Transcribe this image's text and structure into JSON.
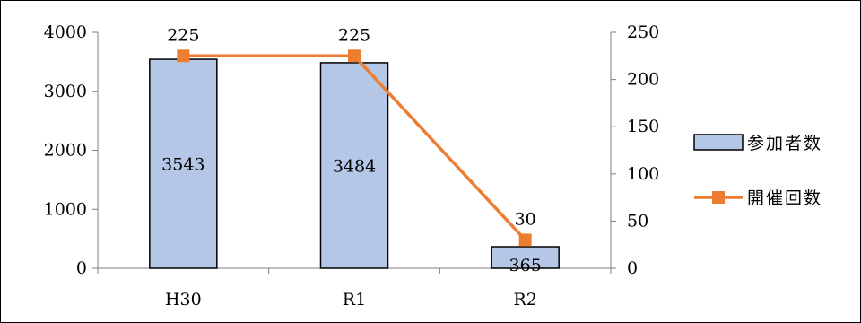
{
  "chart_data": {
    "type": "bar",
    "categories": [
      "H30",
      "R1",
      "R2"
    ],
    "series": [
      {
        "name": "参加者数",
        "type": "bar",
        "axis": "left",
        "values": [
          3543,
          3484,
          365
        ],
        "color": "#B4C7E7",
        "labels": [
          "3543",
          "3484",
          "365"
        ]
      },
      {
        "name": "開催回数",
        "type": "line",
        "axis": "right",
        "values": [
          225,
          225,
          30
        ],
        "color": "#ED7D31",
        "labels": [
          "225",
          "225",
          "30"
        ]
      }
    ],
    "y_left": {
      "min": 0,
      "max": 4000,
      "ticks": [
        "0",
        "1000",
        "2000",
        "3000",
        "4000"
      ]
    },
    "y_right": {
      "min": 0,
      "max": 250,
      "ticks": [
        "0",
        "50",
        "100",
        "150",
        "200",
        "250"
      ]
    },
    "grid": false,
    "legend": "right"
  }
}
